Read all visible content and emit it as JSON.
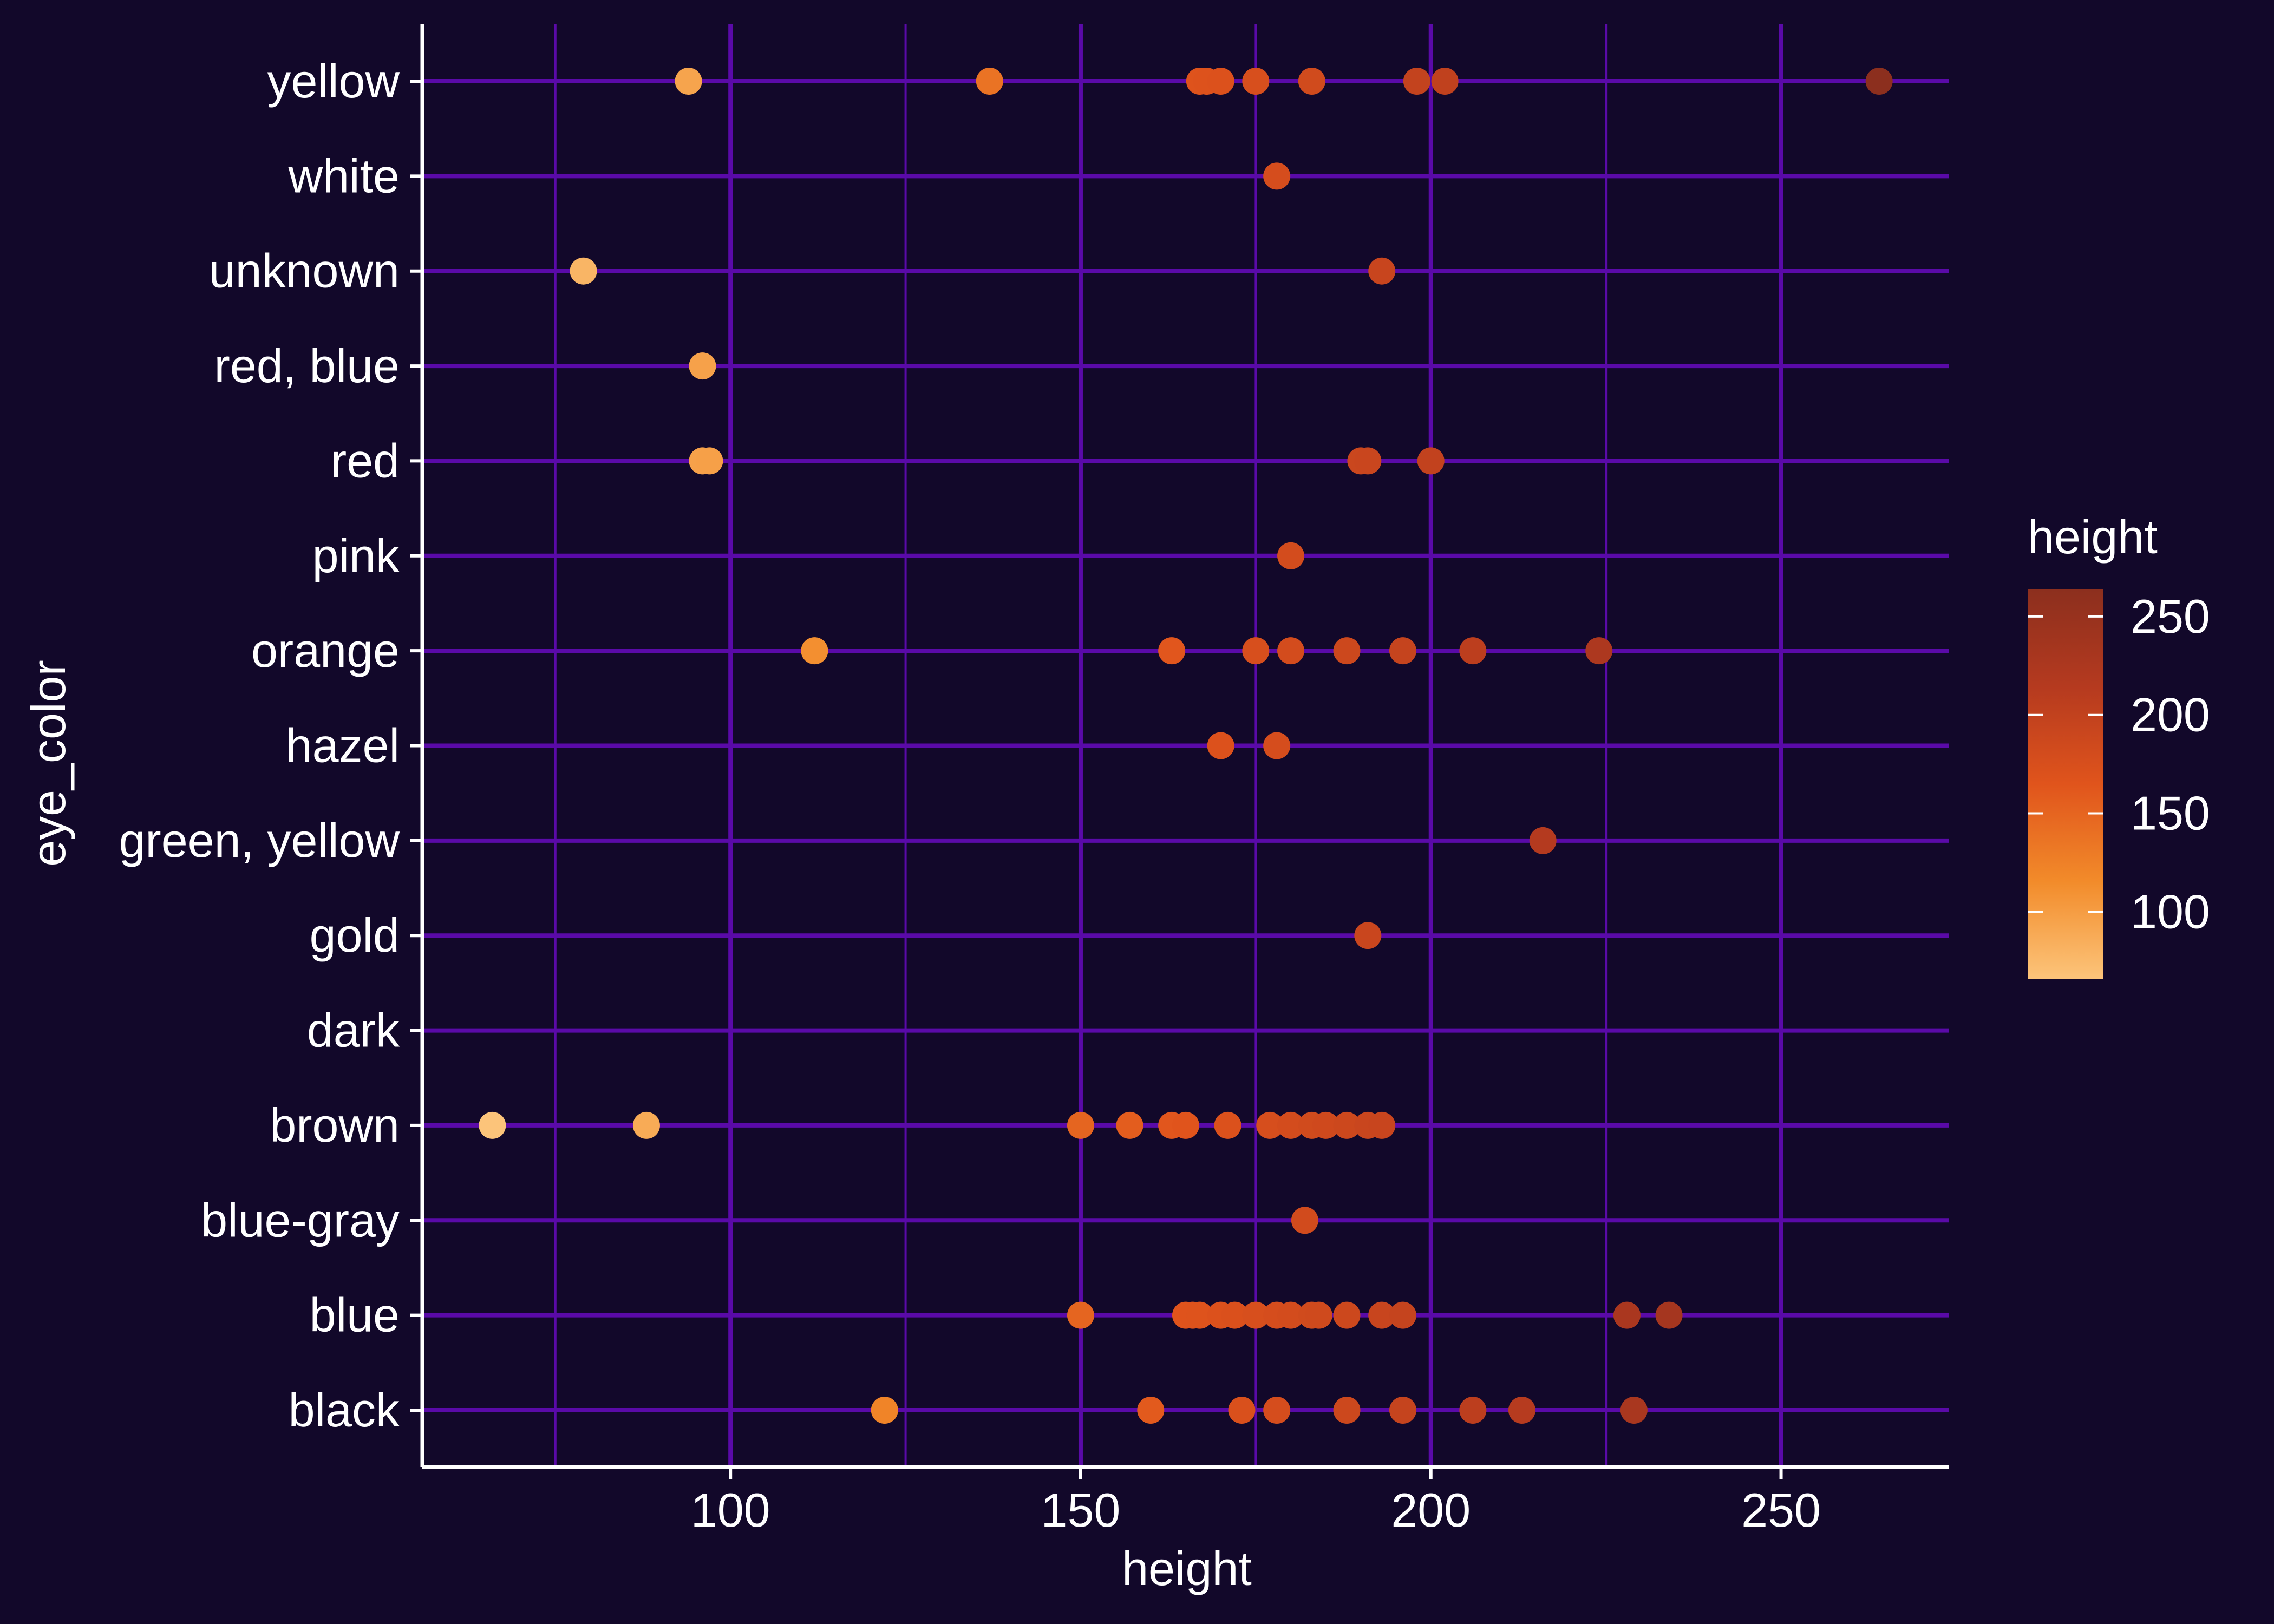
{
  "chart_data": {
    "type": "scatter",
    "title": "",
    "xlabel": "height",
    "ylabel": "eye_color",
    "xlim": [
      56,
      274
    ],
    "x_ticks": [
      100,
      150,
      200,
      250
    ],
    "categories": [
      "black",
      "blue",
      "blue-gray",
      "brown",
      "dark",
      "gold",
      "green, yellow",
      "hazel",
      "orange",
      "pink",
      "red",
      "red, blue",
      "unknown",
      "white",
      "yellow"
    ],
    "points": [
      {
        "y": "yellow",
        "x": 94
      },
      {
        "y": "yellow",
        "x": 137
      },
      {
        "y": "yellow",
        "x": 167
      },
      {
        "y": "yellow",
        "x": 168
      },
      {
        "y": "yellow",
        "x": 170
      },
      {
        "y": "yellow",
        "x": 175
      },
      {
        "y": "yellow",
        "x": 183
      },
      {
        "y": "yellow",
        "x": 198
      },
      {
        "y": "yellow",
        "x": 202
      },
      {
        "y": "yellow",
        "x": 264
      },
      {
        "y": "white",
        "x": 178
      },
      {
        "y": "unknown",
        "x": 79
      },
      {
        "y": "unknown",
        "x": 193
      },
      {
        "y": "red, blue",
        "x": 96
      },
      {
        "y": "red",
        "x": 96
      },
      {
        "y": "red",
        "x": 97
      },
      {
        "y": "red",
        "x": 190
      },
      {
        "y": "red",
        "x": 191
      },
      {
        "y": "red",
        "x": 200
      },
      {
        "y": "pink",
        "x": 180
      },
      {
        "y": "orange",
        "x": 112
      },
      {
        "y": "orange",
        "x": 163
      },
      {
        "y": "orange",
        "x": 175
      },
      {
        "y": "orange",
        "x": 180
      },
      {
        "y": "orange",
        "x": 188
      },
      {
        "y": "orange",
        "x": 196
      },
      {
        "y": "orange",
        "x": 206
      },
      {
        "y": "orange",
        "x": 224
      },
      {
        "y": "hazel",
        "x": 170
      },
      {
        "y": "hazel",
        "x": 178
      },
      {
        "y": "green, yellow",
        "x": 216
      },
      {
        "y": "gold",
        "x": 191
      },
      {
        "y": "brown",
        "x": 66
      },
      {
        "y": "brown",
        "x": 88
      },
      {
        "y": "brown",
        "x": 150
      },
      {
        "y": "brown",
        "x": 157
      },
      {
        "y": "brown",
        "x": 163
      },
      {
        "y": "brown",
        "x": 165
      },
      {
        "y": "brown",
        "x": 171
      },
      {
        "y": "brown",
        "x": 177
      },
      {
        "y": "brown",
        "x": 180
      },
      {
        "y": "brown",
        "x": 183
      },
      {
        "y": "brown",
        "x": 185
      },
      {
        "y": "brown",
        "x": 188
      },
      {
        "y": "brown",
        "x": 191
      },
      {
        "y": "brown",
        "x": 193
      },
      {
        "y": "blue-gray",
        "x": 182
      },
      {
        "y": "blue",
        "x": 150
      },
      {
        "y": "blue",
        "x": 165
      },
      {
        "y": "blue",
        "x": 166
      },
      {
        "y": "blue",
        "x": 167
      },
      {
        "y": "blue",
        "x": 170
      },
      {
        "y": "blue",
        "x": 172
      },
      {
        "y": "blue",
        "x": 175
      },
      {
        "y": "blue",
        "x": 178
      },
      {
        "y": "blue",
        "x": 180
      },
      {
        "y": "blue",
        "x": 183
      },
      {
        "y": "blue",
        "x": 184
      },
      {
        "y": "blue",
        "x": 188
      },
      {
        "y": "blue",
        "x": 193
      },
      {
        "y": "blue",
        "x": 196
      },
      {
        "y": "blue",
        "x": 228
      },
      {
        "y": "blue",
        "x": 234
      },
      {
        "y": "black",
        "x": 122
      },
      {
        "y": "black",
        "x": 160
      },
      {
        "y": "black",
        "x": 173
      },
      {
        "y": "black",
        "x": 178
      },
      {
        "y": "black",
        "x": 188
      },
      {
        "y": "black",
        "x": 196
      },
      {
        "y": "black",
        "x": 206
      },
      {
        "y": "black",
        "x": 213
      },
      {
        "y": "black",
        "x": 229
      }
    ],
    "grid": true,
    "legend": {
      "title": "height",
      "position": "right",
      "type": "colorbar",
      "range": [
        66,
        264
      ],
      "ticks": [
        100,
        150,
        200,
        250
      ]
    },
    "colors": {
      "background": "#12082a",
      "grid": "#5a0aa8",
      "axis": "#ffffff",
      "text": "#ffffff",
      "gradient": [
        "#fcc47a",
        "#f28b2a",
        "#e0541c",
        "#b53a1f",
        "#8c2f1e"
      ]
    }
  }
}
